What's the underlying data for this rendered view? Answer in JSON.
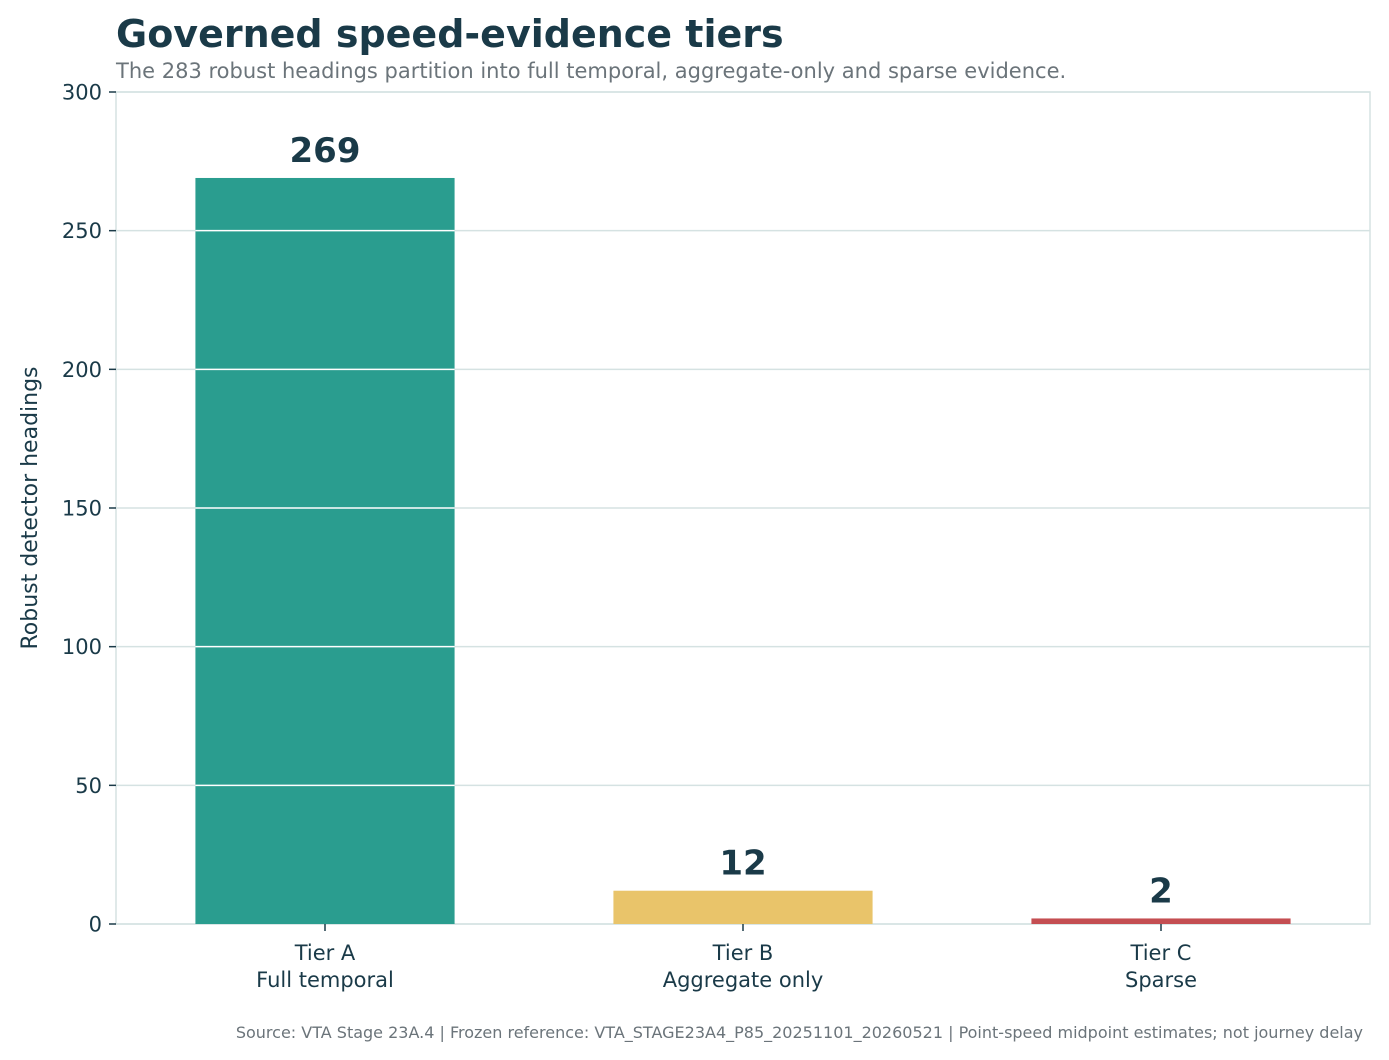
{
  "chart_data": {
    "type": "bar",
    "title": "Governed speed-evidence tiers",
    "subtitle": "The 283 robust headings partition into full temporal, aggregate-only and sparse evidence.",
    "xlabel": "",
    "ylabel": "Robust detector headings",
    "ylim": [
      0,
      300
    ],
    "yticks": [
      0,
      50,
      100,
      150,
      200,
      250,
      300
    ],
    "grid": true,
    "categories": [
      {
        "line1": "Tier A",
        "line2": "Full temporal"
      },
      {
        "line1": "Tier B",
        "line2": "Aggregate only"
      },
      {
        "line1": "Tier C",
        "line2": "Sparse"
      }
    ],
    "values": [
      269,
      12,
      2
    ],
    "data_labels": [
      "269",
      "12",
      "2"
    ],
    "colors": [
      "#2a9d8f",
      "#e9c46a",
      "#c44e52"
    ],
    "source": "Source: VTA Stage 23A.4 | Frozen reference: VTA_STAGE23A4_P85_20251101_20260521 | Point-speed midpoint estimates; not journey delay"
  }
}
